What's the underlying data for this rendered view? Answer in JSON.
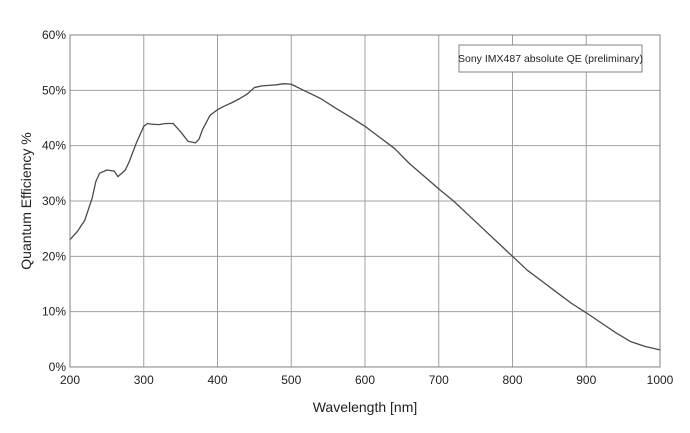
{
  "chart_data": {
    "type": "line",
    "xlabel": "Wavelength [nm]",
    "ylabel": "Quantum Efficiency %",
    "xlim": [
      200,
      1000
    ],
    "ylim": [
      0,
      60
    ],
    "x_ticks": [
      200,
      300,
      400,
      500,
      600,
      700,
      800,
      900,
      1000
    ],
    "y_ticks": [
      0,
      10,
      20,
      30,
      40,
      50,
      60
    ],
    "y_tick_suffix": "%",
    "grid": true,
    "legend_position": "top-right",
    "legend_label": "Sony IMX487 absolute QE (preliminary)",
    "line_color": "#4a4a4a",
    "grid_color": "#a0a0a0",
    "series": [
      {
        "name": "Sony IMX487 absolute QE (preliminary)",
        "points": [
          [
            200,
            23.0
          ],
          [
            210,
            24.5
          ],
          [
            220,
            26.5
          ],
          [
            230,
            30.5
          ],
          [
            235,
            33.5
          ],
          [
            240,
            35.0
          ],
          [
            250,
            35.6
          ],
          [
            260,
            35.4
          ],
          [
            265,
            34.4
          ],
          [
            270,
            35.0
          ],
          [
            275,
            35.6
          ],
          [
            280,
            37.0
          ],
          [
            290,
            40.5
          ],
          [
            300,
            43.5
          ],
          [
            305,
            44.0
          ],
          [
            310,
            43.9
          ],
          [
            320,
            43.8
          ],
          [
            330,
            44.0
          ],
          [
            340,
            44.0
          ],
          [
            350,
            42.5
          ],
          [
            360,
            40.8
          ],
          [
            370,
            40.5
          ],
          [
            375,
            41.2
          ],
          [
            380,
            43.0
          ],
          [
            390,
            45.5
          ],
          [
            400,
            46.5
          ],
          [
            410,
            47.2
          ],
          [
            420,
            47.8
          ],
          [
            430,
            48.5
          ],
          [
            440,
            49.3
          ],
          [
            450,
            50.5
          ],
          [
            460,
            50.8
          ],
          [
            470,
            50.9
          ],
          [
            480,
            51.0
          ],
          [
            490,
            51.2
          ],
          [
            500,
            51.1
          ],
          [
            520,
            49.8
          ],
          [
            540,
            48.5
          ],
          [
            560,
            46.8
          ],
          [
            580,
            45.2
          ],
          [
            600,
            43.5
          ],
          [
            620,
            41.5
          ],
          [
            640,
            39.5
          ],
          [
            660,
            36.8
          ],
          [
            680,
            34.5
          ],
          [
            700,
            32.2
          ],
          [
            720,
            30.0
          ],
          [
            740,
            27.5
          ],
          [
            760,
            25.0
          ],
          [
            780,
            22.5
          ],
          [
            800,
            20.0
          ],
          [
            820,
            17.5
          ],
          [
            840,
            15.5
          ],
          [
            860,
            13.5
          ],
          [
            880,
            11.5
          ],
          [
            900,
            9.8
          ],
          [
            920,
            8.0
          ],
          [
            940,
            6.2
          ],
          [
            960,
            4.6
          ],
          [
            980,
            3.7
          ],
          [
            1000,
            3.1
          ]
        ]
      }
    ]
  }
}
